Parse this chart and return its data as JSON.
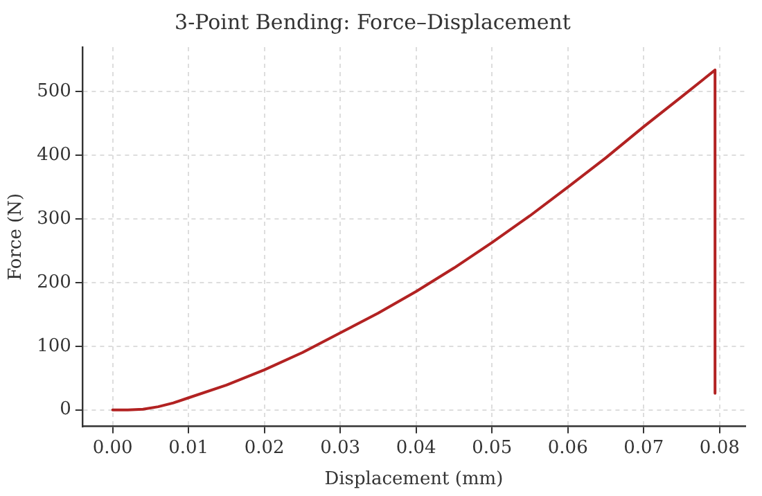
{
  "chart_data": {
    "type": "line",
    "title": "3-Point Bending: Force–Displacement",
    "xlabel": "Displacement (mm)",
    "ylabel": "Force (N)",
    "x": [
      0,
      0.002,
      0.004,
      0.006,
      0.008,
      0.01,
      0.015,
      0.02,
      0.025,
      0.03,
      0.035,
      0.04,
      0.045,
      0.05,
      0.055,
      0.06,
      0.065,
      0.07,
      0.075,
      0.0794,
      0.0794
    ],
    "series": [
      {
        "color": "#b22222",
        "values": [
          0,
          0,
          1,
          5,
          11,
          19,
          39,
          63,
          90,
          121,
          152,
          186,
          223,
          263,
          305,
          350,
          396,
          445,
          492,
          534,
          26
        ]
      }
    ],
    "xlim": [
      -0.004,
      0.0834
    ],
    "ylim": [
      -26,
      570
    ],
    "xticks": [
      {
        "value": 0,
        "label": "0.00"
      },
      {
        "value": 0.01,
        "label": "0.01"
      },
      {
        "value": 0.02,
        "label": "0.02"
      },
      {
        "value": 0.03,
        "label": "0.03"
      },
      {
        "value": 0.04,
        "label": "0.04"
      },
      {
        "value": 0.05,
        "label": "0.05"
      },
      {
        "value": 0.06,
        "label": "0.06"
      },
      {
        "value": 0.07,
        "label": "0.07"
      },
      {
        "value": 0.08,
        "label": "0.08"
      }
    ],
    "yticks": [
      0,
      100,
      200,
      300,
      400,
      500
    ],
    "grid": true,
    "marker": "none",
    "line_style": "solid"
  }
}
